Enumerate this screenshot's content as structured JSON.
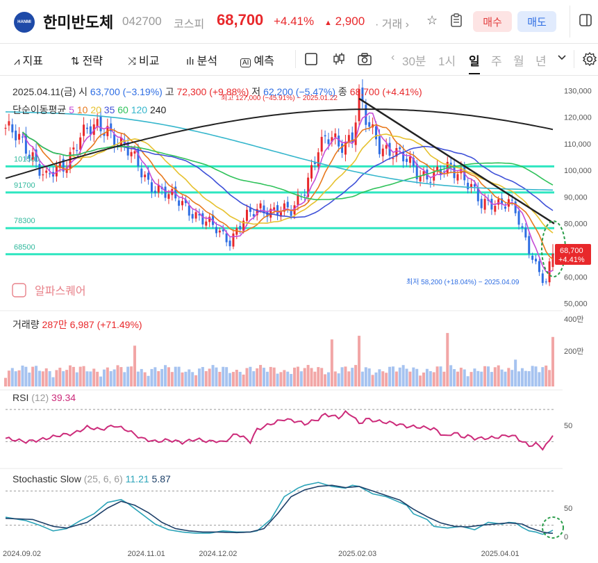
{
  "header": {
    "name": "한미반도체",
    "code": "042700",
    "market": "코스피",
    "price": "68,700",
    "change_pct": "+4.41%",
    "change_abs": "2,900",
    "volume_label": "· 거래",
    "buy_label": "매수",
    "sell_label": "매도",
    "logo_text": "HANMI"
  },
  "toolbar": {
    "indicators": "지표",
    "strategy": "전략",
    "compare": "비교",
    "analysis": "분석",
    "forecast": "예측",
    "periods": [
      "30분",
      "1시",
      "일",
      "주",
      "월",
      "년"
    ],
    "active_period": "일"
  },
  "colors": {
    "up": "#e8282b",
    "down": "#2f6ee3",
    "ma5": "#c44bd6",
    "ma10": "#e8781c",
    "ma20": "#e6c12e",
    "ma35": "#3e50d8",
    "ma60": "#2fc25a",
    "ma120": "#35b6cc",
    "ma240": "#222222",
    "hline": "#2ee6c0",
    "rsi": "#cc2b7a",
    "stoch_k": "#2aa3b8",
    "stoch_d": "#1c3f68"
  },
  "chart_data": {
    "type": "candlestick",
    "price_info": {
      "date": "2025.04.11(금)",
      "open_label": "시",
      "open": "63,700",
      "open_pct": "(−3.19%)",
      "high_label": "고",
      "high": "72,300",
      "high_pct": "(+9.88%)",
      "low_label": "저",
      "low": "62,200",
      "low_pct": "(−5.47%)",
      "close_label": "종",
      "close": "68,700",
      "close_pct": "(+4.41%)"
    },
    "ma_legend_label": "단순이동평균",
    "ma_periods": [
      {
        "period": "5",
        "color": "#c44bd6"
      },
      {
        "period": "10",
        "color": "#e8781c"
      },
      {
        "period": "20",
        "color": "#e6c12e"
      },
      {
        "period": "35",
        "color": "#3e50d8"
      },
      {
        "period": "60",
        "color": "#2fc25a"
      },
      {
        "period": "120",
        "color": "#35b6cc"
      },
      {
        "period": "240",
        "color": "#222222"
      }
    ],
    "y_ticks": [
      "130,000",
      "120,000",
      "110,000",
      "100,000",
      "90,000",
      "80,000",
      "70,000",
      "60,000",
      "50,000"
    ],
    "y_range": [
      47800,
      134000
    ],
    "h_lines": [
      101500,
      91700,
      78300,
      68500
    ],
    "h_line_labels": [
      "101500",
      "91700",
      "78300",
      "68500"
    ],
    "max_note": "최고 127,000 (−45.91%) − 2025.01.22",
    "min_note": "최저 58,200 (+18.04%) − 2025.04.09",
    "current_price_tag": "68,700",
    "current_pct_tag": "+4.41%",
    "watermark": "알파스퀘어",
    "x_labels": [
      "2024.09.02",
      "2024.11.01",
      "2024.12.02",
      "2025.02.03",
      "2025.04.01"
    ],
    "x_label_index": [
      0,
      42,
      63,
      104,
      146
    ],
    "close_path": [
      [
        0,
        116000
      ],
      [
        8,
        106000
      ],
      [
        12,
        97000
      ],
      [
        17,
        101000
      ],
      [
        22,
        114000
      ],
      [
        30,
        116000
      ],
      [
        36,
        107000
      ],
      [
        42,
        96000
      ],
      [
        48,
        90000
      ],
      [
        52,
        88000
      ],
      [
        58,
        81000
      ],
      [
        63,
        77000
      ],
      [
        66,
        74000
      ],
      [
        70,
        81000
      ],
      [
        75,
        86000
      ],
      [
        80,
        85000
      ],
      [
        84,
        84000
      ],
      [
        88,
        94000
      ],
      [
        92,
        108000
      ],
      [
        96,
        112000
      ],
      [
        98,
        110000
      ],
      [
        102,
        113000
      ],
      [
        104,
        127000
      ],
      [
        106,
        118000
      ],
      [
        110,
        110000
      ],
      [
        114,
        107000
      ],
      [
        118,
        103000
      ],
      [
        122,
        99000
      ],
      [
        126,
        98000
      ],
      [
        130,
        100000
      ],
      [
        134,
        100000
      ],
      [
        137,
        94000
      ],
      [
        140,
        86000
      ],
      [
        144,
        88000
      ],
      [
        148,
        89000
      ],
      [
        150,
        84000
      ],
      [
        152,
        76000
      ],
      [
        154,
        70000
      ],
      [
        156,
        65000
      ],
      [
        158,
        60000
      ],
      [
        159,
        58500
      ],
      [
        160,
        65800
      ],
      [
        161,
        68700
      ]
    ],
    "volume": {
      "label": "거래량",
      "value_text": "287만 6,987 (+71.49%)",
      "y_ticks": [
        "400만",
        "200만"
      ],
      "y_max": 4000000,
      "latest": 2876987
    },
    "rsi": {
      "label": "RSI",
      "param": "(12)",
      "value": "39.34",
      "y_ticks": [
        "50"
      ],
      "levels": [
        70,
        30
      ],
      "path": [
        [
          0,
          34
        ],
        [
          6,
          30
        ],
        [
          10,
          32
        ],
        [
          16,
          38
        ],
        [
          20,
          40
        ],
        [
          24,
          48
        ],
        [
          28,
          45
        ],
        [
          32,
          50
        ],
        [
          36,
          44
        ],
        [
          40,
          34
        ],
        [
          44,
          30
        ],
        [
          48,
          32
        ],
        [
          52,
          29
        ],
        [
          56,
          33
        ],
        [
          60,
          30
        ],
        [
          62,
          31
        ],
        [
          64,
          29
        ],
        [
          68,
          40
        ],
        [
          72,
          30
        ],
        [
          74,
          45
        ],
        [
          78,
          52
        ],
        [
          82,
          58
        ],
        [
          86,
          55
        ],
        [
          88,
          52
        ],
        [
          92,
          58
        ],
        [
          94,
          64
        ],
        [
          96,
          62
        ],
        [
          98,
          60
        ],
        [
          100,
          66
        ],
        [
          102,
          63
        ],
        [
          104,
          52
        ],
        [
          106,
          58
        ],
        [
          110,
          55
        ],
        [
          114,
          53
        ],
        [
          118,
          49
        ],
        [
          122,
          48
        ],
        [
          126,
          46
        ],
        [
          128,
          40
        ],
        [
          130,
          36
        ],
        [
          132,
          42
        ],
        [
          134,
          36
        ],
        [
          136,
          37
        ],
        [
          138,
          34
        ],
        [
          140,
          34
        ],
        [
          144,
          35
        ],
        [
          148,
          38
        ],
        [
          150,
          36
        ],
        [
          152,
          30
        ],
        [
          154,
          25
        ],
        [
          156,
          27
        ],
        [
          158,
          22
        ],
        [
          160,
          30
        ],
        [
          161,
          39.34
        ]
      ]
    },
    "stochastic": {
      "label": "Stochastic Slow",
      "param": "(25, 6, 6)",
      "k_value": "11.21",
      "d_value": "5.87",
      "y_ticks": [
        "50",
        "0"
      ],
      "levels": [
        80,
        20
      ],
      "k_path": [
        [
          0,
          34
        ],
        [
          6,
          28
        ],
        [
          10,
          20
        ],
        [
          14,
          10
        ],
        [
          18,
          14
        ],
        [
          22,
          28
        ],
        [
          26,
          40
        ],
        [
          30,
          60
        ],
        [
          34,
          65
        ],
        [
          36,
          58
        ],
        [
          40,
          40
        ],
        [
          44,
          22
        ],
        [
          48,
          12
        ],
        [
          52,
          8
        ],
        [
          56,
          6
        ],
        [
          60,
          6
        ],
        [
          62,
          8
        ],
        [
          64,
          10
        ],
        [
          68,
          8
        ],
        [
          72,
          8
        ],
        [
          74,
          10
        ],
        [
          78,
          30
        ],
        [
          82,
          70
        ],
        [
          86,
          85
        ],
        [
          88,
          90
        ],
        [
          92,
          95
        ],
        [
          96,
          88
        ],
        [
          100,
          85
        ],
        [
          102,
          90
        ],
        [
          104,
          88
        ],
        [
          108,
          75
        ],
        [
          112,
          70
        ],
        [
          116,
          60
        ],
        [
          118,
          55
        ],
        [
          120,
          40
        ],
        [
          124,
          30
        ],
        [
          126,
          18
        ],
        [
          130,
          15
        ],
        [
          134,
          18
        ],
        [
          138,
          12
        ],
        [
          142,
          25
        ],
        [
          146,
          22
        ],
        [
          148,
          25
        ],
        [
          150,
          24
        ],
        [
          152,
          16
        ],
        [
          154,
          10
        ],
        [
          156,
          8
        ],
        [
          158,
          4
        ],
        [
          160,
          8
        ],
        [
          161,
          11.21
        ]
      ],
      "d_path": [
        [
          0,
          32
        ],
        [
          8,
          30
        ],
        [
          14,
          18
        ],
        [
          18,
          15
        ],
        [
          24,
          25
        ],
        [
          30,
          50
        ],
        [
          34,
          62
        ],
        [
          38,
          55
        ],
        [
          42,
          42
        ],
        [
          46,
          25
        ],
        [
          50,
          14
        ],
        [
          54,
          10
        ],
        [
          58,
          8
        ],
        [
          62,
          8
        ],
        [
          68,
          7
        ],
        [
          72,
          8
        ],
        [
          76,
          14
        ],
        [
          80,
          40
        ],
        [
          84,
          70
        ],
        [
          88,
          82
        ],
        [
          92,
          88
        ],
        [
          96,
          90
        ],
        [
          100,
          86
        ],
        [
          104,
          88
        ],
        [
          108,
          80
        ],
        [
          112,
          72
        ],
        [
          116,
          64
        ],
        [
          120,
          48
        ],
        [
          124,
          35
        ],
        [
          128,
          24
        ],
        [
          132,
          18
        ],
        [
          136,
          17
        ],
        [
          140,
          20
        ],
        [
          144,
          22
        ],
        [
          148,
          24
        ],
        [
          152,
          22
        ],
        [
          154,
          16
        ],
        [
          156,
          12
        ],
        [
          158,
          8
        ],
        [
          160,
          6
        ],
        [
          161,
          5.87
        ]
      ]
    }
  }
}
